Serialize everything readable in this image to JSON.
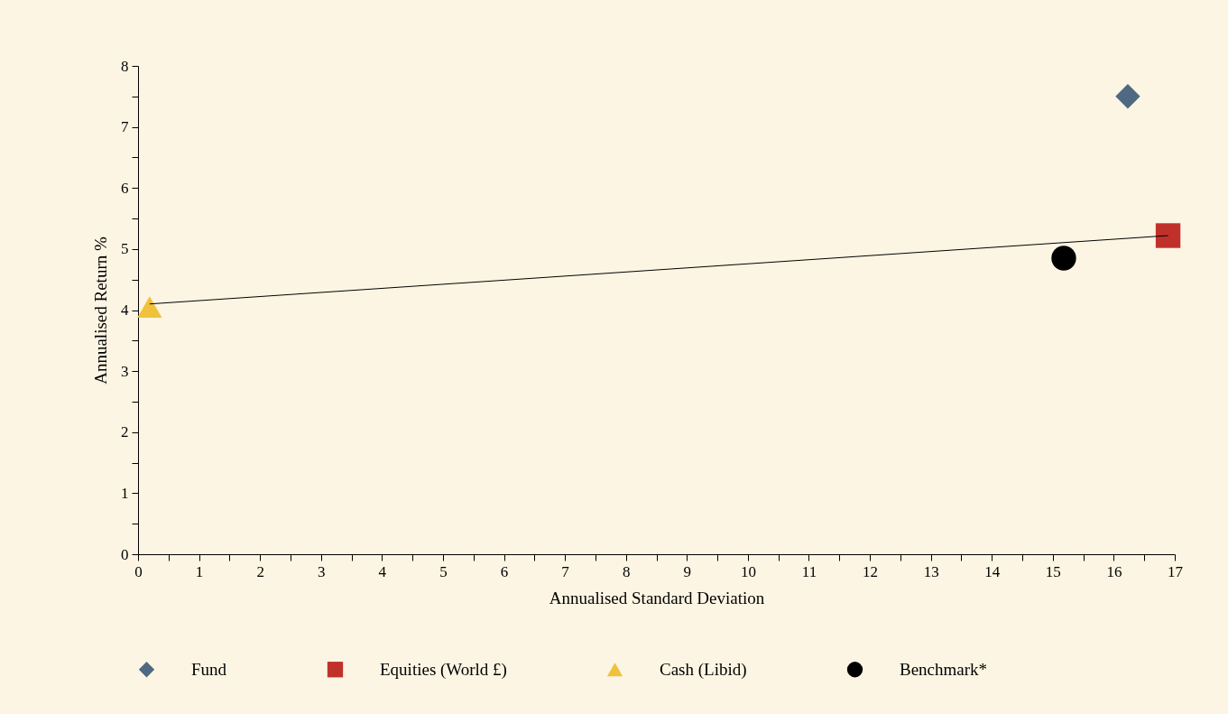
{
  "chart_data": {
    "type": "scatter",
    "xlabel": "Annualised Standard Deviation",
    "ylabel": "Annualised Return %",
    "xlim": [
      0,
      17
    ],
    "ylim": [
      0,
      8
    ],
    "xticks": [
      0,
      {
        "value": 0.5,
        "label": null
      },
      1,
      {
        "value": 1.5,
        "label": null
      },
      2,
      {
        "value": 2.5,
        "label": null
      },
      3,
      {
        "value": 3.5,
        "label": null
      },
      4,
      {
        "value": 4.5,
        "label": null
      },
      5,
      {
        "value": 5.5,
        "label": null
      },
      6,
      {
        "value": 6.5,
        "label": null
      },
      7,
      {
        "value": 7.5,
        "label": null
      },
      8,
      {
        "value": 8.5,
        "label": null
      },
      9,
      {
        "value": 9.5,
        "label": null
      },
      10,
      {
        "value": 10.5,
        "label": null
      },
      11,
      {
        "value": 11.5,
        "label": null
      },
      12,
      {
        "value": 12.5,
        "label": null
      },
      13,
      {
        "value": 13.5,
        "label": null
      },
      14,
      {
        "value": 14.5,
        "label": null
      },
      15,
      {
        "value": 15.5,
        "label": null
      },
      16,
      {
        "value": 16.5,
        "label": null
      },
      17
    ],
    "yticks": [
      0,
      {
        "value": 0.5,
        "label": null
      },
      1,
      {
        "value": 1.5,
        "label": null
      },
      2,
      {
        "value": 2.5,
        "label": null
      },
      3,
      {
        "value": 3.5,
        "label": null
      },
      4,
      {
        "value": 4.5,
        "label": null
      },
      5,
      {
        "value": 5.5,
        "label": null
      },
      6,
      {
        "value": 6.5,
        "label": null
      },
      7,
      {
        "value": 7.5,
        "label": null
      },
      8
    ],
    "grid": false,
    "legend": "bottom",
    "series": [
      {
        "name": "Fund",
        "color": "#4e6a82",
        "marker": "diamond",
        "x": [
          16.23
        ],
        "values": [
          7.5
        ]
      },
      {
        "name": "Equities (World £)",
        "color": "#c0312b",
        "marker": "square",
        "x": [
          16.89
        ],
        "values": [
          5.22
        ]
      },
      {
        "name": "Cash (Libid)",
        "color": "#f0c23c",
        "marker": "triangle",
        "x": [
          0.19
        ],
        "values": [
          4.05
        ]
      },
      {
        "name": "Benchmark*",
        "color": "#000000",
        "marker": "circle",
        "x": [
          15.18
        ],
        "values": [
          4.85
        ]
      },
      {
        "type": "line",
        "color": "#000000",
        "x": [
          0.19,
          16.89
        ],
        "values": [
          4.1,
          5.22
        ]
      }
    ]
  }
}
